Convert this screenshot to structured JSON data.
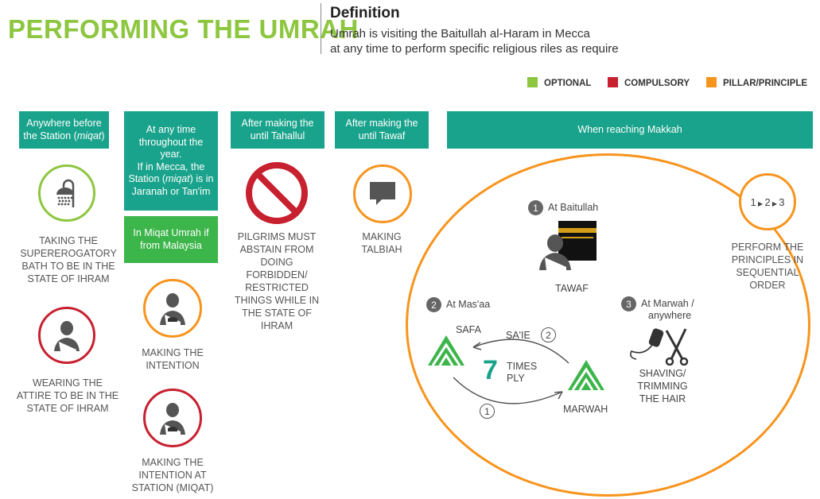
{
  "header": {
    "title": "PERFORMING THE UMRAH",
    "definition_heading": "Definition",
    "definition_line1": "Umrah is visiting the Baitullah al-Haram in Mecca",
    "definition_line2": "at any time to perform specific religious riles as require"
  },
  "legend": [
    {
      "label": "OPTIONAL",
      "color": "#8dc63f"
    },
    {
      "label": "COMPULSORY",
      "color": "#c7202f"
    },
    {
      "label": "PILLAR/PRINCIPLE",
      "color": "#f7941d"
    }
  ],
  "col1": {
    "box_pre": "Anywhere before the Station (",
    "box_em": "miqat",
    "box_post": ")",
    "item1": "TAKING THE SUPEREROGATORY BATH TO BE IN THE STATE OF IHRAM",
    "item2": "WEARING THE ATTIRE TO BE IN THE STATE OF IHRAM"
  },
  "col2": {
    "box_l1": "At any time throughout the year.",
    "box_l2a": "If in Mecca, the Station (",
    "box_em": "miqat",
    "box_l2b": ") is in Jaranah or Tan'im",
    "box2": "In Miqat Umrah if from Malaysia",
    "item1": "MAKING THE INTENTION",
    "item2": "MAKING THE INTENTION AT STATION (MIQAT)"
  },
  "col3": {
    "box": "After making the until Tahallul",
    "item": "PILGRIMS MUST ABSTAIN FROM DOING FORBIDDEN/ RESTRICTED THINGS WHILE IN THE STATE OF IHRAM"
  },
  "col4": {
    "box": "After making the until Tawaf",
    "item": "MAKING TALBIAH"
  },
  "makkah": {
    "box": "When reaching Makkah",
    "step1_num": "1",
    "step1_label": "At Baitullah",
    "tawaf": "TAWAF",
    "step2_num": "2",
    "step2_label": "At Mas'aa",
    "safa": "SAFA",
    "saie": "SA'IE",
    "saie_num": "2",
    "seven": "7",
    "times": "TIMES",
    "ply": "PLY",
    "marwah": "MARWAH",
    "lower_num": "1",
    "step3_num": "3",
    "step3_label_l1": "At Marwah /",
    "step3_label_l2": "anywhere",
    "shaving": "SHAVING/ TRIMMING THE HAIR"
  },
  "order": {
    "sequence_1": "1",
    "sequence_2": "2",
    "sequence_3": "3",
    "label": "PERFORM THE PRINCIPLES IN SEQUENTIAL ORDER"
  }
}
